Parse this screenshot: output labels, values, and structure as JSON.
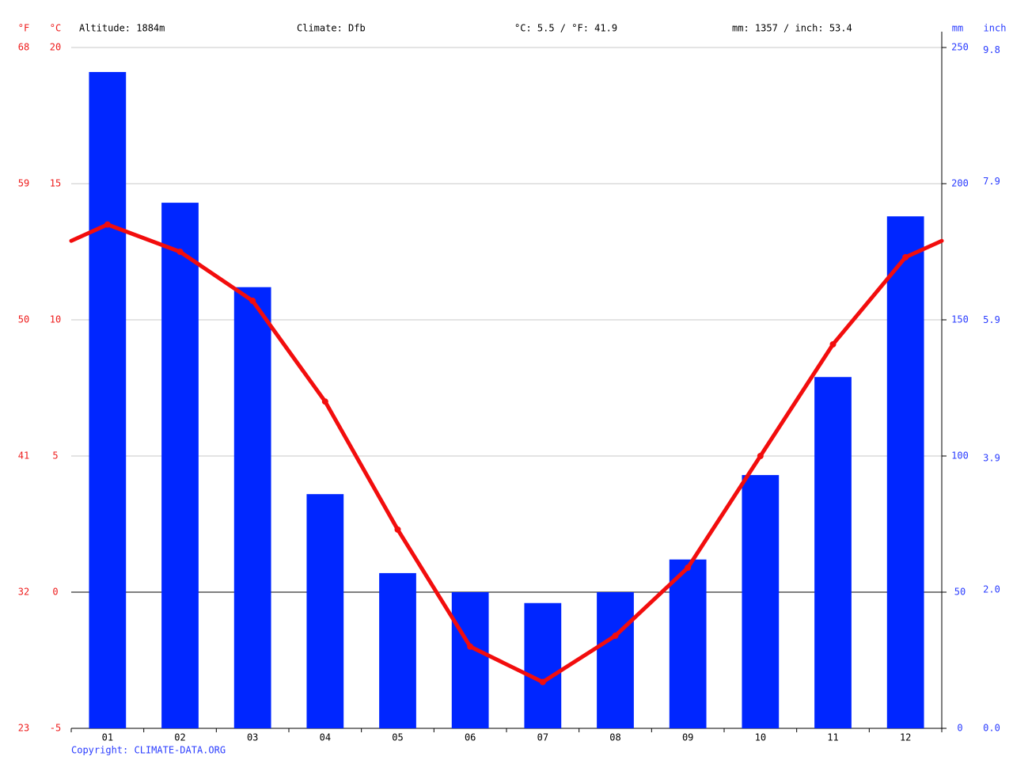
{
  "chart_data": {
    "type": "bar_line",
    "header": [
      "Altitude: 1884m",
      "Climate: Dfb",
      "°C: 5.5 / °F: 41.9",
      "mm: 1357 / inch: 53.4"
    ],
    "units": {
      "fahrenheit": "°F",
      "celsius": "°C",
      "mm": "mm",
      "inch": "inch"
    },
    "categories": [
      "01",
      "02",
      "03",
      "04",
      "05",
      "06",
      "07",
      "08",
      "09",
      "10",
      "11",
      "12"
    ],
    "series": [
      {
        "kind": "bar",
        "color": "#0026ff",
        "axis": "y2",
        "values": [
          241,
          193,
          162,
          86,
          57,
          50,
          46,
          50,
          62,
          93,
          129,
          188
        ]
      },
      {
        "kind": "line",
        "color": "#f20d0d",
        "values": [
          13.5,
          12.5,
          10.7,
          7.0,
          2.3,
          -2.0,
          -3.3,
          -1.6,
          0.9,
          5.0,
          9.1,
          12.3
        ]
      }
    ],
    "ylim": [
      -5,
      20
    ],
    "yticks": [
      20,
      15,
      10,
      5,
      0,
      -5
    ],
    "yticks_fahrenheit": [
      68,
      59,
      50,
      41,
      32,
      23
    ],
    "y2lim": [
      0,
      250
    ],
    "y2ticks": [
      250,
      200,
      150,
      100,
      50,
      0
    ],
    "y2ticks_inch": [
      9.8,
      7.9,
      5.9,
      3.9,
      {
        "value": 2,
        "label": "2.0"
      },
      {
        "value": 0,
        "label": "0.0"
      }
    ],
    "grid": true,
    "copyright": "Copyright: CLIMATE-DATA.ORG"
  }
}
